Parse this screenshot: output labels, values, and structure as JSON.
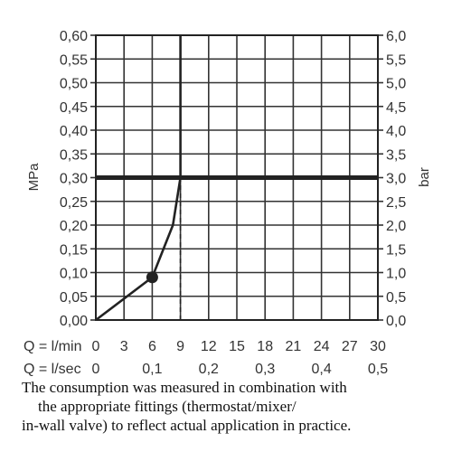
{
  "chart_data": {
    "type": "line",
    "x_axis_label": "Q = l/min",
    "x_ticks": [
      "0",
      "3",
      "6",
      "9",
      "12",
      "15",
      "18",
      "21",
      "24",
      "27",
      "30"
    ],
    "xlim": [
      0,
      30
    ],
    "x2_axis_label": "Q = l/sec",
    "x2_ticks": [
      {
        "label": "0",
        "value": 0
      },
      {
        "label": "0,1",
        "value": 6
      },
      {
        "label": "0,2",
        "value": 12
      },
      {
        "label": "0,3",
        "value": 18
      },
      {
        "label": "0,4",
        "value": 24
      },
      {
        "label": "0,5",
        "value": 30
      }
    ],
    "ylabel": "MPa",
    "y_ticks": [
      "0,00",
      "0,05",
      "0,10",
      "0,15",
      "0,20",
      "0,25",
      "0,30",
      "0,35",
      "0,40",
      "0,45",
      "0,50",
      "0,55",
      "0,60"
    ],
    "ylim": [
      0,
      0.6
    ],
    "y2label": "bar",
    "y2_ticks": [
      "0,0",
      "0,5",
      "1,0",
      "1,5",
      "2,0",
      "2,5",
      "3,0",
      "3,5",
      "4,0",
      "4,5",
      "5,0",
      "5,5",
      "6,0"
    ],
    "grid": true,
    "series": [
      {
        "x": [
          0,
          6,
          8.2,
          9,
          9,
          9
        ],
        "y": [
          0,
          0.09,
          0.2,
          0.3,
          0.45,
          0.6
        ],
        "style": "solid",
        "color": "#222222"
      }
    ],
    "reference_lines": [
      {
        "orientation": "horizontal",
        "y": 0.3,
        "color": "#222222",
        "style": "thick"
      },
      {
        "orientation": "vertical",
        "x": 9,
        "y_range": [
          0,
          0.3
        ],
        "color": "#222222",
        "style": "dashed"
      }
    ],
    "markers": [
      {
        "x": 6,
        "y": 0.09,
        "color": "#222222"
      }
    ]
  },
  "note": {
    "line1": "The consumption was measured in combination with",
    "line2": "the appropriate fittings (thermostat/mixer/",
    "line3": "in-wall valve) to reflect actual application in practice."
  }
}
